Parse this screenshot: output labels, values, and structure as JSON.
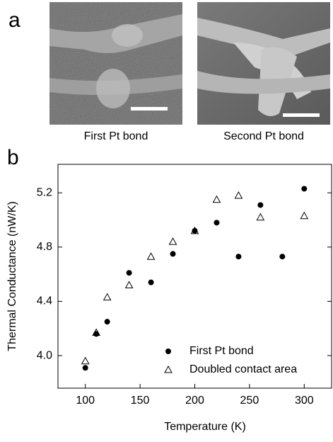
{
  "panel_a": {
    "label": "a",
    "captions": [
      "First Pt bond",
      "Second Pt bond"
    ]
  },
  "chart_data": {
    "type": "scatter",
    "panel_label": "b",
    "x_label": "Temperature (K)",
    "y_label": "Thermal Conductance (nW/K)",
    "xlim": [
      75,
      325
    ],
    "xticks": [
      100,
      150,
      200,
      250,
      300
    ],
    "ylim": [
      3.76,
      5.41
    ],
    "yticks": [
      {
        "value": 4,
        "label": "4.0"
      },
      4.4,
      4.8,
      5.2
    ],
    "legend": "lower right",
    "series": [
      {
        "name": "First Pt bond",
        "color": "#000000",
        "marker": "circle",
        "x": [
          100,
          110,
          120,
          140,
          160,
          180,
          200,
          220,
          240,
          260,
          280,
          300
        ],
        "values": [
          3.91,
          4.16,
          4.25,
          4.61,
          4.54,
          4.75,
          4.92,
          4.98,
          4.73,
          5.11,
          4.73,
          5.23
        ]
      },
      {
        "name": "Doubled contact area",
        "color": "#000000",
        "marker": "triangle",
        "x": [
          100,
          110,
          120,
          140,
          160,
          180,
          200,
          220,
          240,
          260,
          300
        ],
        "values": [
          3.96,
          4.17,
          4.43,
          4.52,
          4.73,
          4.84,
          4.92,
          5.15,
          5.18,
          5.02,
          5.03
        ]
      }
    ]
  }
}
